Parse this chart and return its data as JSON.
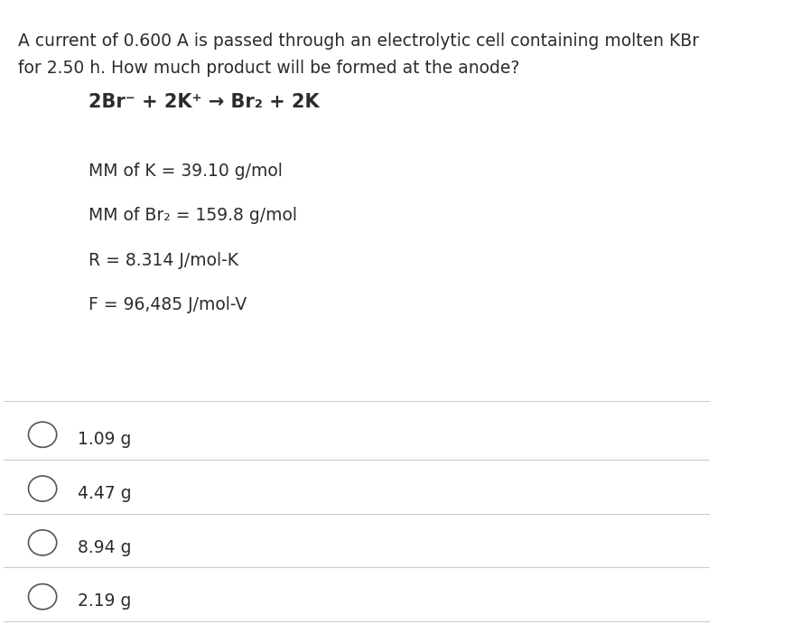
{
  "background_color": "#ffffff",
  "text_color": "#2c2c2c",
  "question_line1": "A current of 0.600 A is passed through an electrolytic cell containing molten KBr",
  "question_line2": "for 2.50 h. How much product will be formed at the anode?",
  "equation": "2Br⁻ + 2K⁺ → Br₂ + 2K",
  "info_lines": [
    "MM of K = 39.10 g/mol",
    "MM of Br₂ = 159.8 g/mol",
    "R = 8.314 J/mol-K",
    "F = 96,485 J/mol-V"
  ],
  "options": [
    "1.09 g",
    "4.47 g",
    "8.94 g",
    "2.19 g"
  ],
  "question_fontsize": 13.5,
  "equation_fontsize": 15,
  "info_fontsize": 13.5,
  "option_fontsize": 13.5,
  "divider_color": "#cccccc",
  "circle_color": "#555555"
}
